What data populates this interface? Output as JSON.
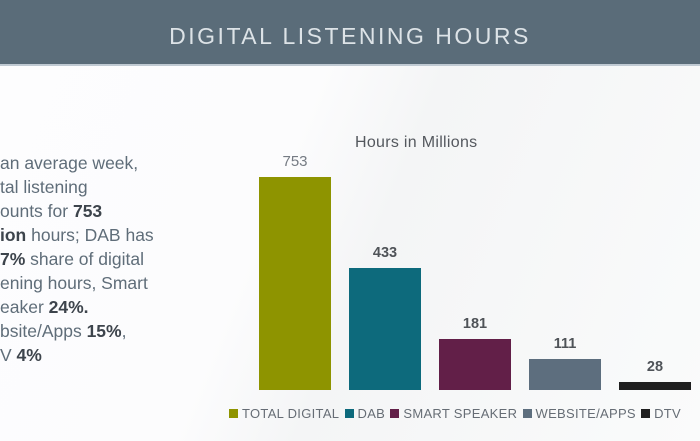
{
  "header": {
    "title": "DIGITAL LISTENING HOURS"
  },
  "intro": {
    "lines": [
      {
        "segments": [
          {
            "text": "an average week,",
            "bold": false
          }
        ]
      },
      {
        "segments": [
          {
            "text": "tal listening",
            "bold": false
          }
        ]
      },
      {
        "segments": [
          {
            "text": "ounts for ",
            "bold": false
          },
          {
            "text": "753",
            "bold": true
          }
        ]
      },
      {
        "segments": [
          {
            "text": "ion",
            "bold": true
          },
          {
            "text": " hours; DAB has",
            "bold": false
          }
        ]
      },
      {
        "segments": [
          {
            "text": "7%",
            "bold": true
          },
          {
            "text": " share of digital",
            "bold": false
          }
        ]
      },
      {
        "segments": [
          {
            "text": "ening hours, Smart",
            "bold": false
          }
        ]
      },
      {
        "segments": [
          {
            "text": "eaker ",
            "bold": false
          },
          {
            "text": "24%.",
            "bold": true
          }
        ]
      },
      {
        "segments": [
          {
            "text": "bsite/Apps ",
            "bold": false
          },
          {
            "text": "15%",
            "bold": true
          },
          {
            "text": ",",
            "bold": false
          }
        ]
      },
      {
        "segments": [
          {
            "text": "V ",
            "bold": false
          },
          {
            "text": "4%",
            "bold": true
          }
        ]
      }
    ]
  },
  "chart_data": {
    "type": "bar",
    "title": "Hours in Millions",
    "categories": [
      "TOTAL DIGITAL",
      "DAB",
      "SMART SPEAKER",
      "WEBSITE/APPS",
      "DTV"
    ],
    "values": [
      753,
      433,
      181,
      111,
      28
    ],
    "colors": [
      "#8e9400",
      "#0d6a7c",
      "#621f48",
      "#5d6e7e",
      "#1f1f1f"
    ],
    "xlabel": "",
    "ylabel": "",
    "ylim": [
      0,
      800
    ],
    "grid": false,
    "legend_position": "bottom",
    "value_labels_shown": true
  },
  "colors": {
    "header_bg": "#5a6c79",
    "header_text": "#dde3e7",
    "body_text": "#5f6d79",
    "body_text_bold": "#3d444c",
    "value_label": "#4f5358",
    "value_label_first": "#757b83",
    "legend_text": "#666d75",
    "background": "#fafbfb"
  }
}
